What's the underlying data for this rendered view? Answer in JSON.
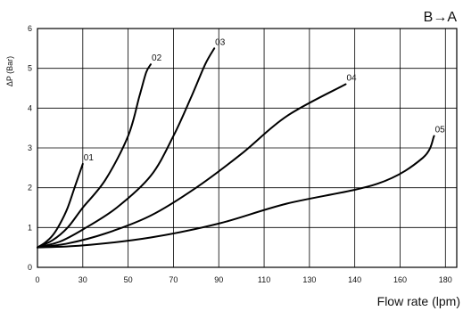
{
  "chart_data": {
    "type": "line",
    "title": "B→A",
    "xlabel": "Flow rate (lpm)",
    "ylabel": "ΔP (Bar)",
    "xlim": [
      0,
      190
    ],
    "ylim": [
      0,
      6
    ],
    "xticks": [
      0,
      30,
      50,
      70,
      90,
      110,
      130,
      140,
      160,
      180
    ],
    "yticks": [
      0,
      1,
      2,
      3,
      4,
      5,
      6
    ],
    "grid": true,
    "series": [
      {
        "name": "01",
        "x": [
          0,
          5,
          10,
          15,
          20,
          25,
          30
        ],
        "y": [
          0.5,
          0.62,
          0.8,
          1.1,
          1.5,
          2.05,
          2.6
        ]
      },
      {
        "name": "02",
        "x": [
          0,
          10,
          20,
          30,
          40,
          50,
          55,
          58,
          60
        ],
        "y": [
          0.5,
          0.68,
          1.0,
          1.5,
          2.2,
          3.3,
          4.3,
          4.9,
          5.1
        ]
      },
      {
        "name": "03",
        "x": [
          0,
          15,
          30,
          45,
          60,
          70,
          78,
          84,
          88
        ],
        "y": [
          0.5,
          0.65,
          0.95,
          1.5,
          2.3,
          3.3,
          4.3,
          5.1,
          5.5
        ]
      },
      {
        "name": "04",
        "x": [
          0,
          20,
          40,
          60,
          80,
          100,
          120,
          138
        ],
        "y": [
          0.5,
          0.6,
          0.85,
          1.3,
          2.0,
          2.85,
          3.8,
          4.6
        ]
      },
      {
        "name": "05",
        "x": [
          0,
          30,
          60,
          90,
          120,
          150,
          170,
          175
        ],
        "y": [
          0.5,
          0.55,
          0.75,
          1.1,
          1.6,
          2.1,
          2.75,
          3.3
        ]
      }
    ]
  }
}
